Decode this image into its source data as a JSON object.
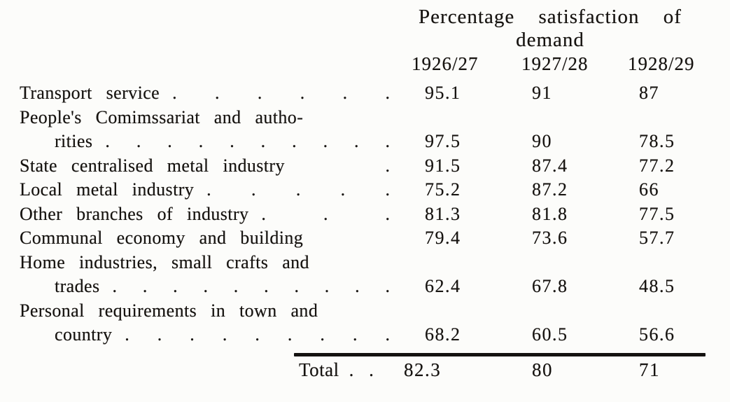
{
  "table": {
    "title_line1": "Percentage satisfaction of",
    "title_line2": "demand",
    "col_headers": [
      "1926/27",
      "1927/28",
      "1928/29"
    ],
    "lines": [
      {
        "label": "Transport service",
        "indent": false,
        "dots": ". . . . . .",
        "values": [
          "95.1",
          "91",
          "87"
        ]
      },
      {
        "label": "People's Comimssariat and autho-",
        "indent": false,
        "dots": "",
        "values": [
          "",
          "",
          ""
        ]
      },
      {
        "label": "rities",
        "indent": true,
        "dots": ". . . . . . . . . .",
        "values": [
          "97.5",
          "90",
          "78.5"
        ]
      },
      {
        "label": "State centralised metal industry",
        "indent": false,
        "dots": ".",
        "values": [
          "91.5",
          "87.4",
          "77.2"
        ]
      },
      {
        "label": "Local metal industry",
        "indent": false,
        "dots": ". . . . .",
        "values": [
          "75.2",
          "87.2",
          "66"
        ]
      },
      {
        "label": "Other branches of industry",
        "indent": false,
        "dots": ". . .",
        "values": [
          "81.3",
          "81.8",
          "77.5"
        ]
      },
      {
        "label": "Communal economy and building",
        "indent": false,
        "dots": "",
        "values": [
          "79.4",
          "73.6",
          "57.7"
        ]
      },
      {
        "label": "Home industries, small crafts and",
        "indent": false,
        "dots": "",
        "values": [
          "",
          "",
          ""
        ]
      },
      {
        "label": "trades",
        "indent": true,
        "dots": ". . . . . . . . . .",
        "values": [
          "62.4",
          "67.8",
          "48.5"
        ]
      },
      {
        "label": "Personal requirements in town and",
        "indent": false,
        "dots": "",
        "values": [
          "",
          "",
          ""
        ]
      },
      {
        "label": "country",
        "indent": true,
        "dots": ". . . . . . . . .",
        "values": [
          "68.2",
          "60.5",
          "56.6"
        ]
      }
    ],
    "total": {
      "label": "Total",
      "dots": ". .",
      "values": [
        "82.3",
        "80",
        "71"
      ]
    }
  },
  "chart_data": {
    "type": "table",
    "title": "Percentage satisfaction of demand",
    "columns": [
      "1926/27",
      "1927/28",
      "1928/29"
    ],
    "rows": [
      {
        "category": "Transport service",
        "values": [
          95.1,
          91,
          87
        ]
      },
      {
        "category": "People's Comimssariat and authorities",
        "values": [
          97.5,
          90,
          78.5
        ]
      },
      {
        "category": "State centralised metal industry",
        "values": [
          91.5,
          87.4,
          77.2
        ]
      },
      {
        "category": "Local metal industry",
        "values": [
          75.2,
          87.2,
          66
        ]
      },
      {
        "category": "Other branches of industry",
        "values": [
          81.3,
          81.8,
          77.5
        ]
      },
      {
        "category": "Communal economy and building",
        "values": [
          79.4,
          73.6,
          57.7
        ]
      },
      {
        "category": "Home industries, small crafts and trades",
        "values": [
          62.4,
          67.8,
          48.5
        ]
      },
      {
        "category": "Personal requirements in town and country",
        "values": [
          68.2,
          60.5,
          56.6
        ]
      },
      {
        "category": "Total",
        "values": [
          82.3,
          80,
          71
        ]
      }
    ]
  }
}
